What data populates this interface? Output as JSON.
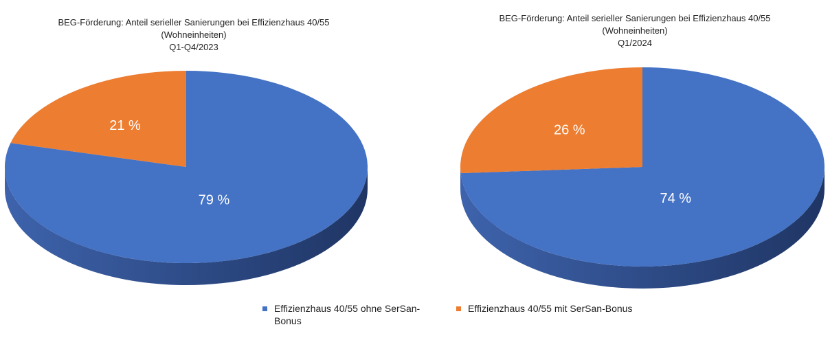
{
  "colors": {
    "ohne": "#4472C4",
    "mit": "#ED7D31",
    "ohne_side_dark": "#1F3564",
    "ohne_side_light": "#3E63AC",
    "mit_side": "#A0531E"
  },
  "chart_data": [
    {
      "type": "pie",
      "style": "3d",
      "title_lines": [
        "BEG-Förderung: Anteil serieller Sanierungen bei Effizienzhaus 40/55",
        "(Wohneinheiten)",
        "Q1-Q4/2023"
      ],
      "slices": [
        {
          "label": "Effizienzhaus 40/55 ohne SerSan-Bonus",
          "value": 79,
          "data_label": "79 %",
          "color_key": "ohne"
        },
        {
          "label": "Effizienzhaus 40/55 mit SerSan-Bonus",
          "value": 21,
          "data_label": "21 %",
          "color_key": "mit"
        }
      ]
    },
    {
      "type": "pie",
      "style": "3d",
      "title_lines": [
        "BEG-Förderung: Anteil serieller Sanierungen bei Effizienzhaus 40/55",
        "(Wohneinheiten)",
        "Q1/2024"
      ],
      "slices": [
        {
          "label": "Effizienzhaus 40/55 ohne SerSan-Bonus",
          "value": 74,
          "data_label": "74 %",
          "color_key": "ohne"
        },
        {
          "label": "Effizienzhaus 40/55 mit SerSan-Bonus",
          "value": 26,
          "data_label": "26 %",
          "color_key": "mit"
        }
      ]
    }
  ],
  "legend": {
    "placement": "bottom",
    "items": [
      {
        "label": "Effizienzhaus 40/55 ohne SerSan-Bonus",
        "color_key": "ohne"
      },
      {
        "label": "Effizienzhaus 40/55 mit SerSan-Bonus",
        "color_key": "mit"
      }
    ]
  }
}
